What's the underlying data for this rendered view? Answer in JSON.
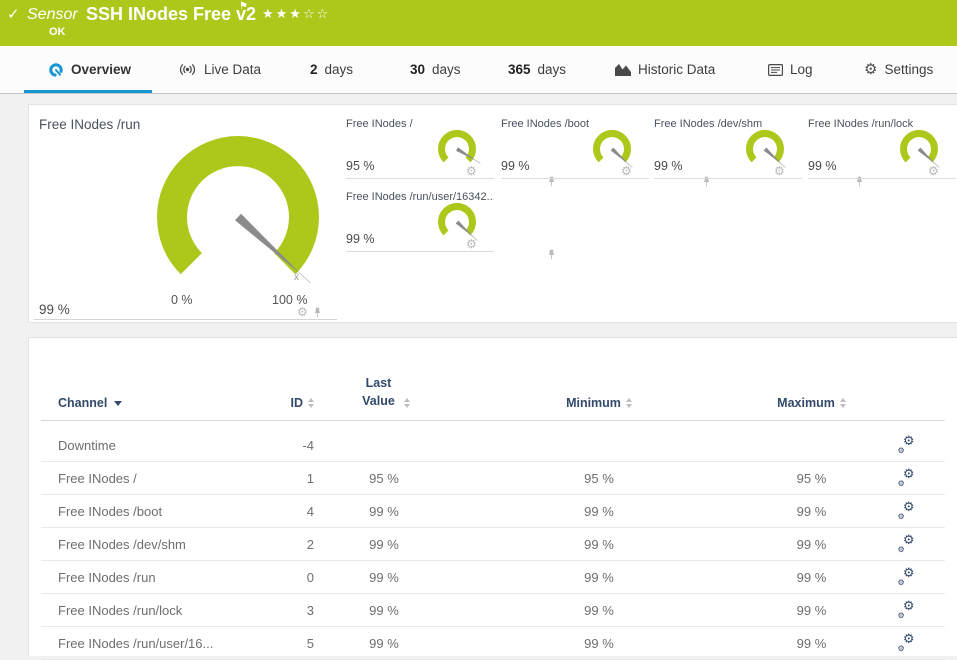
{
  "colors": {
    "green": "#adc71a",
    "blue": "#1496d2",
    "navy": "#33496b"
  },
  "header": {
    "check_icon": "✓",
    "kind": "Sensor",
    "title": "SSH INodes Free v2",
    "flag_icon": "⚑",
    "stars_filled": "★★★",
    "stars_empty": "☆☆",
    "status": "OK"
  },
  "tabs": [
    {
      "label": "Overview"
    },
    {
      "label": "Live Data"
    },
    {
      "num": "2",
      "label": "days"
    },
    {
      "num": "30",
      "label": "days"
    },
    {
      "num": "365",
      "label": "days"
    },
    {
      "label": "Historic Data"
    },
    {
      "label": "Log"
    },
    {
      "label": "Settings"
    }
  ],
  "gauges": {
    "primary": {
      "title": "Free INodes /run",
      "value": 99,
      "value_label": "99 %",
      "scale_min": "0 %",
      "scale_max": "100 %",
      "avg_marker": "x̄"
    },
    "small": [
      {
        "title": "Free INodes /",
        "value": 95,
        "value_label": "95 %"
      },
      {
        "title": "Free INodes /boot",
        "value": 99,
        "value_label": "99 %"
      },
      {
        "title": "Free INodes /dev/shm",
        "value": 99,
        "value_label": "99 %"
      },
      {
        "title": "Free INodes /run/lock",
        "value": 99,
        "value_label": "99 %"
      },
      {
        "title": "Free INodes /run/user/16342...",
        "value": 99,
        "value_label": "99 %"
      }
    ]
  },
  "channel_table": {
    "headers": {
      "channel": "Channel",
      "id": "ID",
      "last_value": "Last Value",
      "minimum": "Minimum",
      "maximum": "Maximum"
    },
    "rows": [
      {
        "channel": "Downtime",
        "id": "-4",
        "last": "",
        "min": "",
        "max": ""
      },
      {
        "channel": "Free INodes /",
        "id": "1",
        "last": "95 %",
        "min": "95 %",
        "max": "95 %"
      },
      {
        "channel": "Free INodes /boot",
        "id": "4",
        "last": "99 %",
        "min": "99 %",
        "max": "99 %"
      },
      {
        "channel": "Free INodes /dev/shm",
        "id": "2",
        "last": "99 %",
        "min": "99 %",
        "max": "99 %"
      },
      {
        "channel": "Free INodes /run",
        "id": "0",
        "last": "99 %",
        "min": "99 %",
        "max": "99 %"
      },
      {
        "channel": "Free INodes /run/lock",
        "id": "3",
        "last": "99 %",
        "min": "99 %",
        "max": "99 %"
      },
      {
        "channel": "Free INodes /run/user/16...",
        "id": "5",
        "last": "99 %",
        "min": "99 %",
        "max": "99 %"
      }
    ]
  }
}
